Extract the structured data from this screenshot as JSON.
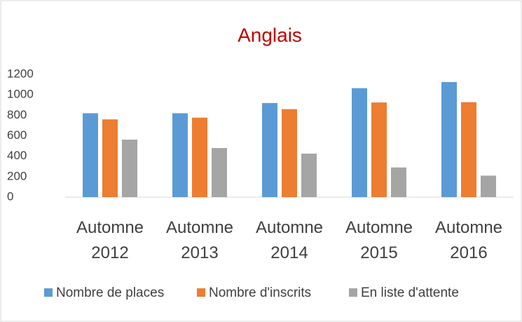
{
  "chart_data": {
    "type": "bar",
    "title": "Anglais",
    "categories": [
      "Automne 2012",
      "Automne 2013",
      "Automne 2014",
      "Automne 2015",
      "Automne 2016"
    ],
    "series": [
      {
        "name": "Nombre de places",
        "color": "#5b9bd5",
        "values": [
          820,
          820,
          920,
          1065,
          1125
        ]
      },
      {
        "name": "Nombre d'inscrits",
        "color": "#ed7d31",
        "values": [
          760,
          777,
          860,
          925,
          928
        ]
      },
      {
        "name": "En liste d'attente",
        "color": "#a5a5a5",
        "values": [
          562,
          480,
          425,
          290,
          210
        ]
      }
    ],
    "ylim": [
      0,
      1200
    ],
    "yticks": [
      0,
      200,
      400,
      600,
      800,
      1000,
      1200
    ],
    "grid": false,
    "legend": "bottom"
  }
}
